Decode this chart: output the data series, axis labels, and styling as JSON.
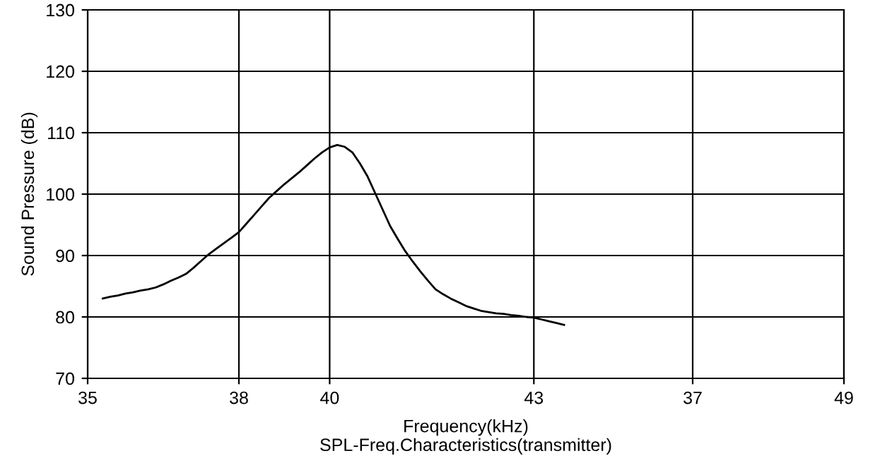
{
  "chart_data": {
    "type": "line",
    "title": "SPL-Freq.Characteristics(transmitter)",
    "xlabel": "Frequency(kHz)",
    "ylabel": "Sound Pressure (dB)",
    "categories": [
      "35",
      null,
      null,
      null,
      null,
      null,
      null,
      null,
      null,
      null,
      null,
      null,
      null,
      null,
      null,
      null,
      null,
      null,
      null,
      null,
      "38",
      null,
      null,
      null,
      null,
      null,
      null,
      null,
      null,
      null,
      null,
      null,
      "40",
      null,
      null,
      null,
      null,
      null,
      null,
      null,
      null,
      null,
      null,
      null,
      null,
      null,
      null,
      null,
      null,
      null,
      null,
      null,
      null,
      null,
      null,
      null,
      null,
      null,
      null,
      "43",
      null,
      null,
      null,
      null,
      null,
      null,
      null,
      null,
      null,
      null,
      null,
      null,
      null,
      null,
      null,
      null,
      null,
      null,
      null,
      null,
      "37",
      null,
      null,
      null,
      null,
      null,
      null,
      null,
      null,
      null,
      null,
      null,
      null,
      null,
      null,
      null,
      null,
      null,
      null,
      null,
      "49"
    ],
    "series": [
      {
        "color": "#000000",
        "values": [
          null,
          null,
          83.0,
          83.3,
          83.5,
          83.8,
          84.0,
          84.3,
          84.5,
          84.8,
          85.3,
          85.9,
          86.4,
          87.0,
          88.0,
          89.1,
          90.2,
          91.1,
          92.0,
          92.9,
          93.8,
          95.2,
          96.6,
          98.0,
          99.4,
          100.5,
          101.6,
          102.6,
          103.6,
          104.7,
          105.8,
          106.8,
          107.6,
          108.0,
          107.7,
          106.8,
          105.0,
          102.9,
          100.2,
          97.5,
          94.8,
          92.7,
          90.7,
          89.0,
          87.4,
          85.9,
          84.5,
          83.7,
          83.0,
          82.4,
          81.8,
          81.4,
          81.0,
          80.8,
          80.6,
          80.5,
          80.3,
          80.2,
          80.0,
          79.9,
          79.6,
          79.3,
          79.0,
          78.7,
          null,
          null,
          null,
          null,
          null,
          null,
          null,
          null,
          null,
          null,
          null,
          null,
          null,
          null,
          null,
          null,
          null,
          null,
          null,
          null,
          null,
          null,
          null,
          null,
          null,
          null,
          null,
          null,
          null,
          null,
          null,
          null,
          null,
          null,
          null,
          null,
          null
        ]
      }
    ],
    "ylim": [
      70,
      130
    ],
    "yticks": [
      70,
      80,
      90,
      100,
      110,
      120,
      130
    ],
    "grid": true,
    "marker": "none",
    "line_style": "solid"
  }
}
